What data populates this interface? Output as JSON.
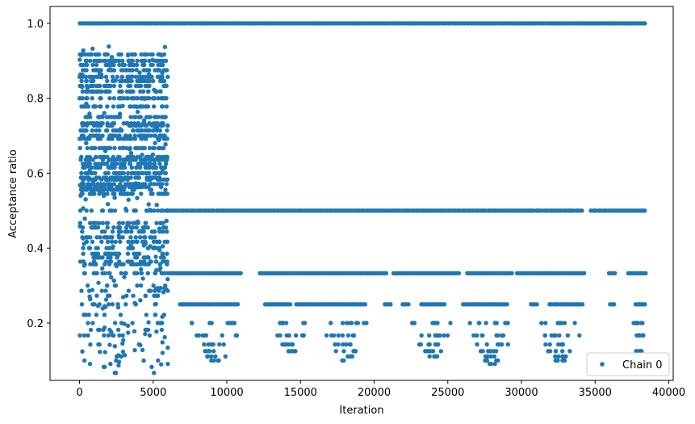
{
  "chart_data": {
    "type": "scatter",
    "xlabel": "Iteration",
    "ylabel": "Acceptance ratio",
    "xlim": [
      -2000,
      40300
    ],
    "ylim": [
      0.047,
      1.045
    ],
    "xticks": [
      0,
      5000,
      10000,
      15000,
      20000,
      25000,
      30000,
      35000,
      40000
    ],
    "xtick_labels": [
      "0",
      "5000",
      "10000",
      "15000",
      "20000",
      "25000",
      "30000",
      "35000",
      "40000"
    ],
    "yticks": [
      0.2,
      0.4,
      0.6,
      0.8,
      1.0
    ],
    "ytick_labels": [
      "0.2",
      "0.4",
      "0.6",
      "0.8",
      "1.0"
    ],
    "grid": false,
    "legend_position": "lower-right",
    "marker_color": "#1f77b4",
    "series": [
      {
        "name": "Chain 0",
        "x_range": [
          0,
          38400
        ],
        "burn_in_end": 6000,
        "burn_in_levels": [
          0.9,
          0.917,
          0.889,
          0.875,
          0.857,
          0.846,
          0.833,
          0.818,
          0.8,
          0.778,
          0.75,
          0.733,
          0.727,
          0.714,
          0.7,
          0.692,
          0.667,
          0.643,
          0.636,
          0.625,
          0.615,
          0.6,
          0.588,
          0.583,
          0.571,
          0.563,
          0.556,
          0.545,
          0.5,
          0.467,
          0.455,
          0.444,
          0.429,
          0.417,
          0.4,
          0.385,
          0.375,
          0.364,
          0.357,
          0.333,
          0.3,
          0.286,
          0.273,
          0.25,
          0.222,
          0.2,
          0.182,
          0.167,
          0.143,
          0.111,
          0.1,
          0.091,
          0.083,
          0.067
        ],
        "stationary_levels": [
          1.0,
          0.5,
          0.333,
          0.25,
          0.2,
          0.167,
          0.143,
          0.125,
          0.111,
          0.1,
          0.091
        ],
        "dense_segments": [
          {
            "y": 1.0,
            "ranges": [
              [
                0,
                38400
              ]
            ]
          },
          {
            "y": 0.5,
            "ranges": [
              [
                6000,
                34200
              ],
              [
                34700,
                38400
              ]
            ]
          },
          {
            "y": 0.333,
            "ranges": [
              [
                6000,
                11000
              ],
              [
                12200,
                20800
              ],
              [
                21300,
                25800
              ],
              [
                26300,
                29300
              ],
              [
                29700,
                34300
              ],
              [
                35900,
                36300
              ],
              [
                37200,
                38400
              ]
            ]
          },
          {
            "y": 0.25,
            "ranges": [
              [
                6800,
                10800
              ],
              [
                12600,
                14400
              ],
              [
                14700,
                19500
              ],
              [
                20700,
                21200
              ],
              [
                21900,
                22400
              ],
              [
                23200,
                24800
              ],
              [
                26000,
                29000
              ],
              [
                30600,
                31100
              ],
              [
                31900,
                34200
              ],
              [
                36000,
                36300
              ],
              [
                37700,
                38400
              ]
            ]
          }
        ],
        "sparse_clusters": [
          {
            "x_range": [
              7500,
              11000
            ],
            "levels": [
              0.2,
              0.167,
              0.143,
              0.125,
              0.111,
              0.1
            ]
          },
          {
            "x_range": [
              13000,
              15500
            ],
            "levels": [
              0.2,
              0.167,
              0.143,
              0.125
            ]
          },
          {
            "x_range": [
              16500,
              19500
            ],
            "levels": [
              0.2,
              0.167,
              0.143,
              0.125,
              0.111,
              0.1
            ]
          },
          {
            "x_range": [
              22500,
              25500
            ],
            "levels": [
              0.2,
              0.167,
              0.143,
              0.125,
              0.111
            ]
          },
          {
            "x_range": [
              26500,
              29500
            ],
            "levels": [
              0.2,
              0.167,
              0.143,
              0.125,
              0.111,
              0.1,
              0.091
            ]
          },
          {
            "x_range": [
              31000,
              34200
            ],
            "levels": [
              0.2,
              0.167,
              0.143,
              0.125,
              0.111,
              0.1
            ]
          },
          {
            "x_range": [
              37500,
              38400
            ],
            "levels": [
              0.2,
              0.167,
              0.125
            ]
          }
        ]
      }
    ]
  }
}
